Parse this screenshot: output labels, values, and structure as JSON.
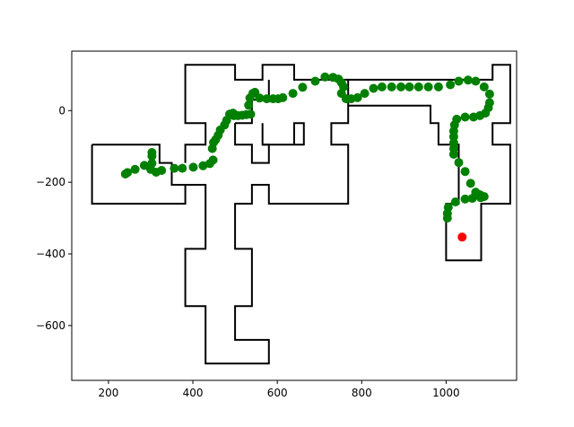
{
  "chart_data": {
    "type": "scatter",
    "title": "",
    "xlabel": "",
    "ylabel": "",
    "xlim": [
      113,
      1167
    ],
    "ylim": [
      -753,
      166
    ],
    "xticks": [
      200,
      400,
      600,
      800,
      1000
    ],
    "yticks": [
      0,
      -200,
      -400,
      -600
    ],
    "xtick_labels": [
      "200",
      "400",
      "600",
      "800",
      "1000"
    ],
    "ytick_labels": [
      "0",
      "−200",
      "−400",
      "−600"
    ],
    "grid": false,
    "legend": "none",
    "colors": {
      "path": "#008000",
      "target": "#ff0000",
      "walls": "#000000"
    },
    "walls": [
      [
        [
          161,
          -95
        ],
        [
          321,
          -95
        ],
        [
          321,
          -146
        ],
        [
          350,
          -146
        ],
        [
          350,
          -207
        ],
        [
          382,
          -207
        ],
        [
          382,
          -260
        ],
        [
          161,
          -260
        ],
        [
          161,
          -95
        ]
      ],
      [
        [
          382,
          -207
        ],
        [
          430,
          -207
        ],
        [
          430,
          -386
        ],
        [
          382,
          -386
        ],
        [
          382,
          -546
        ],
        [
          430,
          -546
        ],
        [
          430,
          -706
        ],
        [
          580,
          -706
        ],
        [
          580,
          -640
        ],
        [
          500,
          -640
        ],
        [
          500,
          -546
        ],
        [
          540,
          -546
        ],
        [
          540,
          -386
        ],
        [
          500,
          -386
        ],
        [
          500,
          -260
        ],
        [
          540,
          -260
        ],
        [
          540,
          -207
        ],
        [
          580,
          -207
        ],
        [
          580,
          -260
        ],
        [
          768,
          -260
        ],
        [
          768,
          -95
        ],
        [
          728,
          -95
        ],
        [
          728,
          -35
        ],
        [
          768,
          -35
        ],
        [
          768,
          86
        ],
        [
          640,
          86
        ],
        [
          640,
          128
        ],
        [
          565,
          128
        ],
        [
          565,
          86
        ],
        [
          500,
          86
        ],
        [
          500,
          128
        ],
        [
          382,
          128
        ],
        [
          382,
          -35
        ],
        [
          430,
          -35
        ],
        [
          430,
          -95
        ],
        [
          382,
          -95
        ],
        [
          382,
          -146
        ]
      ],
      [
        [
          768,
          86
        ],
        [
          1110,
          86
        ],
        [
          1110,
          128
        ],
        [
          1152,
          128
        ],
        [
          1152,
          -35
        ],
        [
          1110,
          -35
        ],
        [
          1110,
          -95
        ],
        [
          1152,
          -95
        ],
        [
          1152,
          -260
        ],
        [
          1083,
          -260
        ],
        [
          1083,
          -418
        ],
        [
          1000,
          -418
        ],
        [
          1000,
          -260
        ],
        [
          1030,
          -260
        ],
        [
          1030,
          -95
        ],
        [
          982,
          -95
        ],
        [
          982,
          -35
        ],
        [
          963,
          -35
        ],
        [
          963,
          14
        ],
        [
          768,
          14
        ]
      ],
      [
        [
          565,
          -35
        ],
        [
          565,
          -95
        ],
        [
          640,
          -95
        ],
        [
          640,
          -35
        ],
        [
          663,
          -35
        ],
        [
          663,
          -95
        ],
        [
          640,
          -95
        ]
      ],
      [
        [
          500,
          -35
        ],
        [
          500,
          -95
        ],
        [
          540,
          -95
        ],
        [
          540,
          -146
        ],
        [
          580,
          -146
        ],
        [
          580,
          -95
        ],
        [
          565,
          -95
        ]
      ],
      [
        [
          540,
          30
        ],
        [
          540,
          -35
        ],
        [
          500,
          -35
        ]
      ],
      [
        [
          580,
          30
        ],
        [
          580,
          86
        ]
      ],
      [
        [
          580,
          30
        ],
        [
          540,
          30
        ]
      ]
    ],
    "path": [
      [
        240,
        -177
      ],
      [
        245,
        -173
      ],
      [
        263,
        -164
      ],
      [
        285,
        -153
      ],
      [
        303,
        -117
      ],
      [
        303,
        -127
      ],
      [
        303,
        -147
      ],
      [
        300,
        -164
      ],
      [
        313,
        -172
      ],
      [
        326,
        -167
      ],
      [
        356,
        -161
      ],
      [
        375,
        -161
      ],
      [
        401,
        -158
      ],
      [
        424,
        -154
      ],
      [
        440,
        -148
      ],
      [
        448,
        -138
      ],
      [
        446,
        -106
      ],
      [
        449,
        -89
      ],
      [
        454,
        -81
      ],
      [
        460,
        -69
      ],
      [
        465,
        -54
      ],
      [
        475,
        -40
      ],
      [
        480,
        -27
      ],
      [
        487,
        -10
      ],
      [
        495,
        -7
      ],
      [
        497,
        -14
      ],
      [
        501,
        -13
      ],
      [
        507,
        -14
      ],
      [
        517,
        -13
      ],
      [
        527,
        -11
      ],
      [
        537,
        -10
      ],
      [
        532,
        15
      ],
      [
        535,
        35
      ],
      [
        542,
        48
      ],
      [
        547,
        51
      ],
      [
        558,
        35
      ],
      [
        575,
        33
      ],
      [
        590,
        33
      ],
      [
        602,
        33
      ],
      [
        613,
        36
      ],
      [
        637,
        48
      ],
      [
        660,
        65
      ],
      [
        690,
        82
      ],
      [
        713,
        94
      ],
      [
        732,
        93
      ],
      [
        745,
        88
      ],
      [
        752,
        78
      ],
      [
        757,
        66
      ],
      [
        752,
        48
      ],
      [
        763,
        33
      ],
      [
        775,
        33
      ],
      [
        790,
        36
      ],
      [
        807,
        48
      ],
      [
        828,
        62
      ],
      [
        848,
        66
      ],
      [
        871,
        66
      ],
      [
        893,
        66
      ],
      [
        913,
        66
      ],
      [
        935,
        66
      ],
      [
        958,
        66
      ],
      [
        982,
        66
      ],
      [
        1010,
        72
      ],
      [
        1030,
        82
      ],
      [
        1052,
        85
      ],
      [
        1070,
        82
      ],
      [
        1090,
        66
      ],
      [
        1103,
        46
      ],
      [
        1103,
        22
      ],
      [
        1100,
        8
      ],
      [
        1093,
        -7
      ],
      [
        1080,
        -14
      ],
      [
        1065,
        -18
      ],
      [
        1045,
        -18
      ],
      [
        1025,
        -24
      ],
      [
        1020,
        -40
      ],
      [
        1018,
        -57
      ],
      [
        1018,
        -73
      ],
      [
        1018,
        -90
      ],
      [
        1018,
        -106
      ],
      [
        1018,
        -122
      ],
      [
        1030,
        -145
      ],
      [
        1045,
        -170
      ],
      [
        1058,
        -203
      ],
      [
        1070,
        -228
      ],
      [
        1080,
        -235
      ],
      [
        1090,
        -240
      ],
      [
        1082,
        -243
      ],
      [
        1062,
        -245
      ],
      [
        1045,
        -247
      ],
      [
        1022,
        -255
      ],
      [
        1005,
        -270
      ],
      [
        1003,
        -287
      ],
      [
        1003,
        -300
      ]
    ],
    "target": [
      1038,
      -353
    ]
  }
}
